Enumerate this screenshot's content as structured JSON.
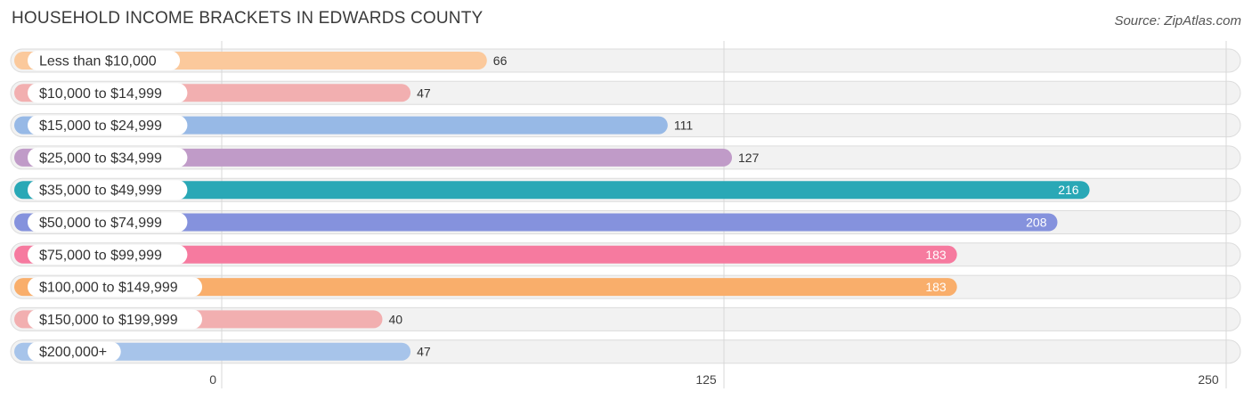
{
  "chart_data": {
    "type": "bar",
    "orientation": "horizontal",
    "title": "HOUSEHOLD INCOME BRACKETS IN EDWARDS COUNTY",
    "source": "Source: ZipAtlas.com",
    "categories": [
      "Less than $10,000",
      "$10,000 to $14,999",
      "$15,000 to $24,999",
      "$25,000 to $34,999",
      "$35,000 to $49,999",
      "$50,000 to $74,999",
      "$75,000 to $99,999",
      "$100,000 to $149,999",
      "$150,000 to $199,999",
      "$200,000+"
    ],
    "values": [
      66,
      47,
      111,
      127,
      216,
      208,
      183,
      183,
      40,
      47
    ],
    "value_labels": [
      "66",
      "47",
      "111",
      "127",
      "216",
      "208",
      "183",
      "183",
      "40",
      "47"
    ],
    "colors": [
      "#fbc99c",
      "#f2afb0",
      "#97b9e6",
      "#c09bc8",
      "#29a8b6",
      "#8592dd",
      "#f67a9f",
      "#f9ae6b",
      "#f2afb0",
      "#a7c4ea"
    ],
    "xlim": [
      0,
      250
    ],
    "xticks": [
      0,
      125,
      250
    ],
    "xtick_labels": [
      "0",
      "125",
      "250"
    ],
    "grid": true,
    "xlabel": "",
    "ylabel": ""
  }
}
